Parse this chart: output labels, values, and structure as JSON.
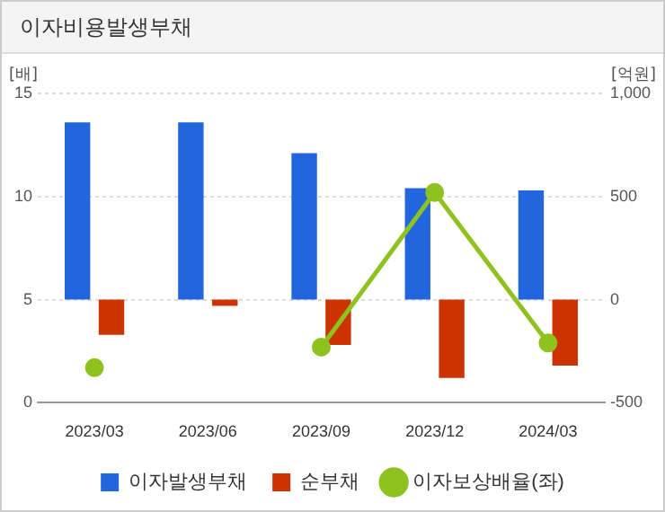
{
  "chart_data": {
    "type": "bar",
    "title": "이자비용발생부채",
    "ylabel": "[배]",
    "y2label": "[억원]",
    "categories": [
      "2023/03",
      "2023/06",
      "2023/09",
      "2023/12",
      "2024/03"
    ],
    "series": [
      {
        "name": "이자발생부채",
        "color": "#2266dd",
        "axis": "y2",
        "values": [
          860,
          860,
          710,
          540,
          530
        ]
      },
      {
        "name": "순부채",
        "color": "#cc3300",
        "axis": "y2",
        "values": [
          -170,
          -30,
          -220,
          -380,
          -320
        ]
      },
      {
        "name": "이자보상배율(좌)",
        "type": "line",
        "color": "#8dc21f",
        "marker": "circle",
        "values": [
          1.7,
          null,
          2.7,
          10.2,
          2.9
        ]
      }
    ],
    "ylim": [
      0,
      15
    ],
    "yticks": [
      0,
      5,
      10,
      15
    ],
    "y2lim": [
      -500,
      1000
    ],
    "y2ticks": [
      -500,
      0,
      500,
      {
        "value": 1000,
        "label": "1,000"
      }
    ],
    "grid": "y",
    "legend": "bottom"
  }
}
